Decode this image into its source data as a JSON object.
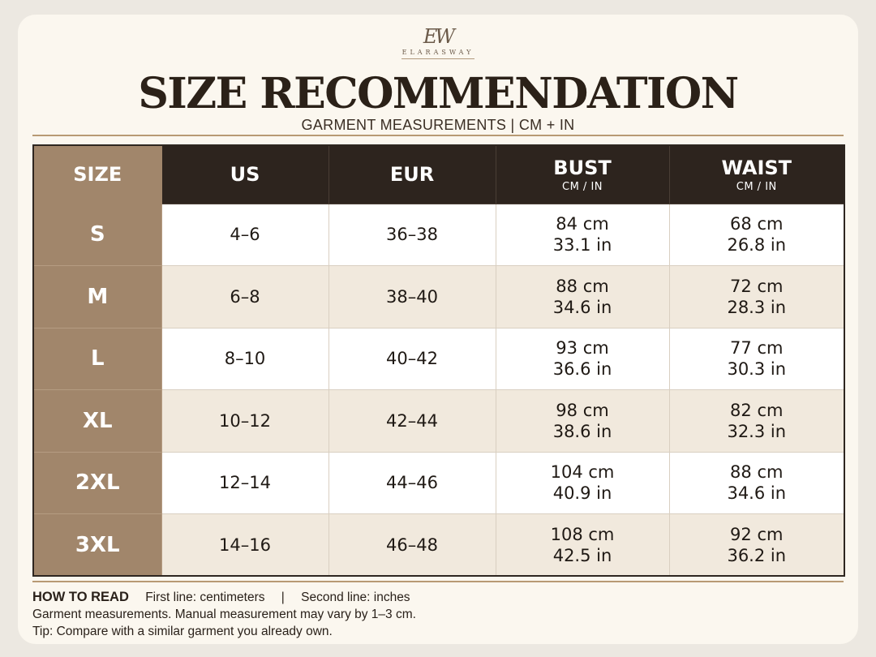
{
  "brand": {
    "monogram": "EW",
    "name": "ELARASWAY"
  },
  "header": {
    "title": "SIZE RECOMMENDATION",
    "subtitle": "GARMENT MEASUREMENTS | CM + IN"
  },
  "table": {
    "columns": [
      {
        "label": "SIZE",
        "sub": ""
      },
      {
        "label": "US",
        "sub": ""
      },
      {
        "label": "EUR",
        "sub": ""
      },
      {
        "label": "BUST",
        "sub": "CM / IN"
      },
      {
        "label": "WAIST",
        "sub": "CM / IN"
      }
    ],
    "rows": [
      {
        "size": "S",
        "us": "4–6",
        "eur": "36–38",
        "bust_cm": "84 cm",
        "bust_in": "33.1 in",
        "waist_cm": "68 cm",
        "waist_in": "26.8 in"
      },
      {
        "size": "M",
        "us": "6–8",
        "eur": "38–40",
        "bust_cm": "88 cm",
        "bust_in": "34.6 in",
        "waist_cm": "72 cm",
        "waist_in": "28.3 in"
      },
      {
        "size": "L",
        "us": "8–10",
        "eur": "40–42",
        "bust_cm": "93 cm",
        "bust_in": "36.6 in",
        "waist_cm": "77 cm",
        "waist_in": "30.3 in"
      },
      {
        "size": "XL",
        "us": "10–12",
        "eur": "42–44",
        "bust_cm": "98 cm",
        "bust_in": "38.6 in",
        "waist_cm": "82 cm",
        "waist_in": "32.3 in"
      },
      {
        "size": "2XL",
        "us": "12–14",
        "eur": "44–46",
        "bust_cm": "104 cm",
        "bust_in": "40.9 in",
        "waist_cm": "88 cm",
        "waist_in": "34.6 in"
      },
      {
        "size": "3XL",
        "us": "14–16",
        "eur": "46–48",
        "bust_cm": "108 cm",
        "bust_in": "42.5 in",
        "waist_cm": "92 cm",
        "waist_in": "36.2 in"
      }
    ]
  },
  "notes": {
    "howto_label": "HOW TO READ",
    "first_line": "First line: centimeters",
    "separator": "|",
    "second_line": "Second line: inches",
    "disclaimer": "Garment measurements. Manual measurement may vary by 1–3 cm.",
    "tip": "Tip: Compare with a similar garment you already own."
  },
  "colors": {
    "header_dark": "#2d241e",
    "size_column": "#a1866b",
    "row_alt": "#f1e9dd",
    "accent_rule": "#b89a74"
  }
}
